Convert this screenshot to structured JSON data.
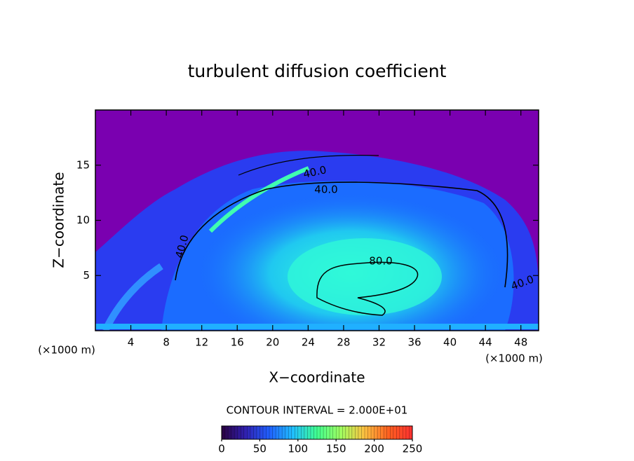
{
  "chart_data": {
    "type": "contour",
    "title": "turbulent diffusion coefficient",
    "xlabel": "X−coordinate",
    "ylabel": "Z−coordinate",
    "x_unit_label": "(×1000 m)",
    "xlim": [
      0,
      50
    ],
    "xticks": [
      4,
      8,
      12,
      16,
      20,
      24,
      28,
      32,
      36,
      40,
      44,
      48
    ],
    "ylim": [
      0,
      20
    ],
    "yticks": [
      5,
      10,
      15
    ],
    "contour_labels": [
      "40.0",
      "40.0",
      "80.0",
      "40.0",
      "40.0"
    ],
    "contour_interval_label": "CONTOUR INTERVAL = 2.000E+01",
    "colorbar": {
      "lim": [
        0,
        250
      ],
      "ticks": [
        0,
        50,
        100,
        150,
        200,
        250
      ],
      "colors": [
        "#2a0040",
        "#3020b0",
        "#2060ff",
        "#20c0ff",
        "#40ff90",
        "#a0ff60",
        "#ffc040",
        "#ff6020",
        "#ff3030"
      ]
    }
  }
}
